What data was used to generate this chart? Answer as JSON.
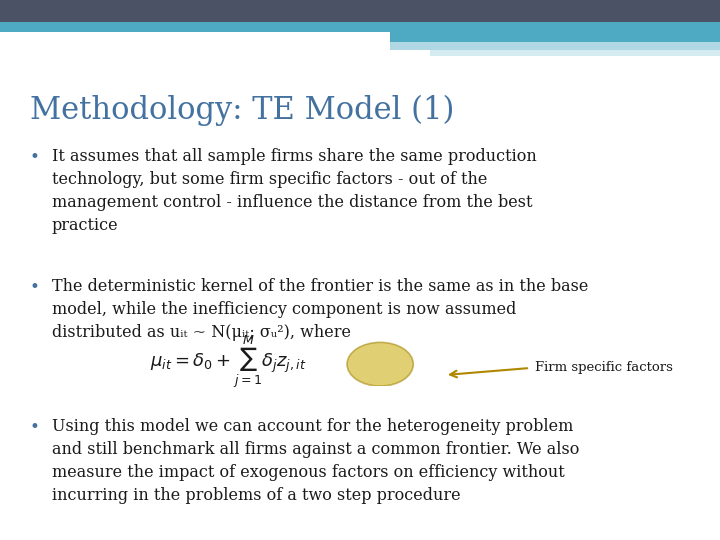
{
  "title": "Methodology: TE Model (1)",
  "title_color": "#4472A0",
  "title_fontsize": 22,
  "background_color": "#FFFFFF",
  "header_top_color": "#4B5265",
  "header_mid_color": "#4EAAC2",
  "header_light_color": "#B0D8E4",
  "header_lightest_color": "#D5EBF2",
  "bullet_color": "#4472A0",
  "bullet1": "It assumes that all sample firms share the same production\ntechnology, but some firm specific factors - out of the\nmanagement control - influence the distance from the best\npractice",
  "bullet2": "The deterministic kernel of the frontier is the same as in the base\nmodel, while the inefficiency component is now assumed\ndistributed as uᵢₜ ~ N(μᵢₜ; σᵤ²), where",
  "bullet3": "Using this model we can account for the heterogeneity problem\nand still benchmark all firms against a common frontier. We also\nmeasure the impact of exogenous factors on efficiency without\nincurring in the problems of a two step procedure",
  "formula_label": "Firm specific factors",
  "text_fontsize": 11.5,
  "text_color": "#1A1A1A",
  "formula_fontsize": 13
}
